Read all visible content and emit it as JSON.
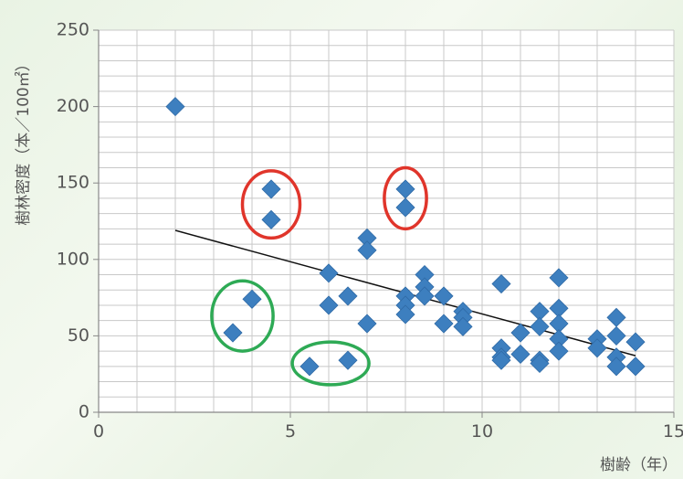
{
  "chart_data": {
    "type": "scatter",
    "title": "",
    "xlabel": "樹齢（年）",
    "ylabel": "樹林密度（本／100㎡）",
    "xlim": [
      0,
      15
    ],
    "ylim": [
      0,
      250
    ],
    "xticks": [
      "0",
      "5",
      "10",
      "15"
    ],
    "yticks": [
      "0",
      "50",
      "100",
      "150",
      "200",
      "250"
    ],
    "grid": true,
    "legend": "none",
    "marker_color": "#3d7fbf",
    "trendline": {
      "x": [
        2,
        14
      ],
      "y": [
        119,
        37
      ],
      "color": "#111111"
    },
    "series": [
      {
        "points": [
          [
            2,
            200
          ],
          [
            3.5,
            52
          ],
          [
            4,
            74
          ],
          [
            4.5,
            146
          ],
          [
            4.5,
            126
          ],
          [
            5.5,
            30
          ],
          [
            6,
            91
          ],
          [
            6,
            70
          ],
          [
            6.5,
            76
          ],
          [
            6.5,
            34
          ],
          [
            7,
            114
          ],
          [
            7,
            106
          ],
          [
            7,
            58
          ],
          [
            8,
            146
          ],
          [
            8,
            134
          ],
          [
            8,
            76
          ],
          [
            8,
            70
          ],
          [
            8,
            64
          ],
          [
            8.5,
            90
          ],
          [
            8.5,
            82
          ],
          [
            8.5,
            76
          ],
          [
            9,
            76
          ],
          [
            9,
            58
          ],
          [
            9.5,
            66
          ],
          [
            9.5,
            62
          ],
          [
            9.5,
            56
          ],
          [
            10.5,
            84
          ],
          [
            10.5,
            42
          ],
          [
            10.5,
            36
          ],
          [
            10.5,
            34
          ],
          [
            11,
            52
          ],
          [
            11,
            38
          ],
          [
            11.5,
            66
          ],
          [
            11.5,
            56
          ],
          [
            11.5,
            34
          ],
          [
            11.5,
            32
          ],
          [
            12,
            88
          ],
          [
            12,
            68
          ],
          [
            12,
            58
          ],
          [
            12,
            48
          ],
          [
            12,
            40
          ],
          [
            13,
            48
          ],
          [
            13,
            42
          ],
          [
            13.5,
            62
          ],
          [
            13.5,
            50
          ],
          [
            13.5,
            36
          ],
          [
            13.5,
            30
          ],
          [
            14,
            46
          ],
          [
            14,
            30
          ]
        ]
      }
    ],
    "annotations": [
      {
        "shape": "ellipse",
        "color": "#e0352b",
        "cx": 4.5,
        "cy": 136,
        "rx": 0.75,
        "ry": 22
      },
      {
        "shape": "ellipse",
        "color": "#e0352b",
        "cx": 8,
        "cy": 140,
        "rx": 0.55,
        "ry": 20
      },
      {
        "shape": "ellipse",
        "color": "#2eaa55",
        "cx": 3.75,
        "cy": 63,
        "rx": 0.8,
        "ry": 23
      },
      {
        "shape": "ellipse",
        "color": "#2eaa55",
        "cx": 6.05,
        "cy": 32,
        "rx": 1.0,
        "ry": 14
      }
    ]
  }
}
